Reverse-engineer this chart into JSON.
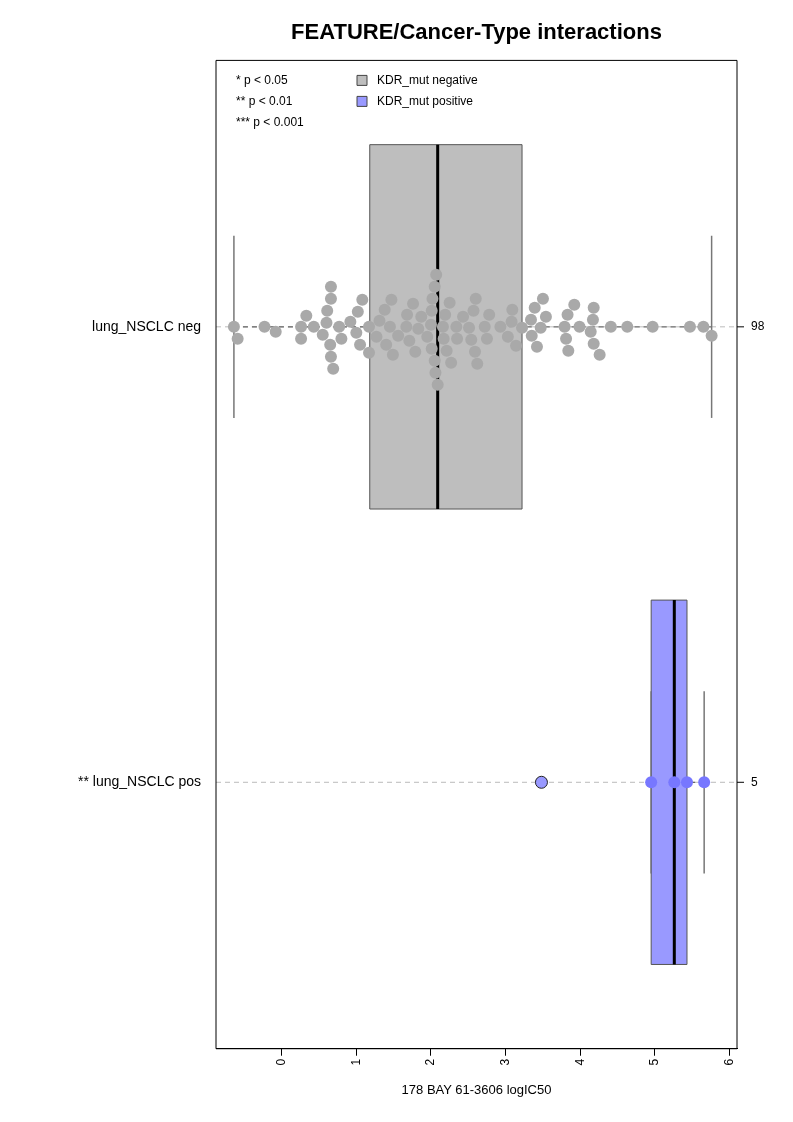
{
  "chart_data": {
    "type": "box",
    "title": "FEATURE/Cancer-Type interactions",
    "xlabel": "178 BAY 61-3606 logIC50",
    "orientation": "horizontal",
    "categories": [
      "lung_NSCLC neg",
      "** lung_NSCLC pos"
    ],
    "xlim": [
      -0.88,
      6.1
    ],
    "xticks": [
      0,
      1,
      2,
      3,
      4,
      5,
      6
    ],
    "grid": "y",
    "legend": "top left",
    "marker": "circle",
    "y2_categories": [
      "98",
      "5"
    ],
    "annotations": [
      "* p < 0.05",
      "** p < 0.01",
      "*** p < 0.001"
    ],
    "series": [
      {
        "name": "KDR_mut negative",
        "type": "box",
        "color": "#bebebe",
        "boxes": [
          {
            "low": -0.64,
            "q1": 1.18,
            "median": 2.09,
            "q3": 3.22,
            "high": 5.76
          },
          null
        ]
      },
      {
        "name": "KDR_mut positive",
        "type": "box",
        "color": "#9999ff",
        "boxes": [
          null,
          {
            "low": 4.95,
            "q1": 4.95,
            "median": 5.26,
            "q3": 5.43,
            "high": 5.66,
            "outliers": [
              3.48
            ]
          }
        ]
      },
      {
        "type": "scatter",
        "color": "#a9a9a9",
        "x": [
          "lung_NSCLC neg",
          "lung_NSCLC neg",
          "lung_NSCLC neg",
          "lung_NSCLC neg",
          "lung_NSCLC neg",
          "lung_NSCLC neg",
          "lung_NSCLC neg",
          "lung_NSCLC neg",
          "lung_NSCLC neg",
          "lung_NSCLC neg",
          "lung_NSCLC neg",
          "lung_NSCLC neg",
          "lung_NSCLC neg",
          "lung_NSCLC neg",
          "lung_NSCLC neg",
          "lung_NSCLC neg",
          "lung_NSCLC neg",
          "lung_NSCLC neg",
          "lung_NSCLC neg",
          "lung_NSCLC neg",
          "lung_NSCLC neg",
          "lung_NSCLC neg",
          "lung_NSCLC neg",
          "lung_NSCLC neg",
          "lung_NSCLC neg",
          "lung_NSCLC neg",
          "lung_NSCLC neg",
          "lung_NSCLC neg",
          "lung_NSCLC neg",
          "lung_NSCLC neg",
          "lung_NSCLC neg",
          "lung_NSCLC neg",
          "lung_NSCLC neg",
          "lung_NSCLC neg",
          "lung_NSCLC neg",
          "lung_NSCLC neg",
          "lung_NSCLC neg",
          "lung_NSCLC neg",
          "lung_NSCLC neg",
          "lung_NSCLC neg",
          "lung_NSCLC neg",
          "lung_NSCLC neg",
          "lung_NSCLC neg",
          "lung_NSCLC neg",
          "lung_NSCLC neg",
          "lung_NSCLC neg",
          "lung_NSCLC neg",
          "lung_NSCLC neg",
          "lung_NSCLC neg",
          "lung_NSCLC neg",
          "lung_NSCLC neg",
          "lung_NSCLC neg",
          "lung_NSCLC neg",
          "lung_NSCLC neg",
          "lung_NSCLC neg",
          "lung_NSCLC neg",
          "lung_NSCLC neg",
          "lung_NSCLC neg",
          "lung_NSCLC neg",
          "lung_NSCLC neg",
          "lung_NSCLC neg",
          "lung_NSCLC neg",
          "lung_NSCLC neg",
          "lung_NSCLC neg",
          "lung_NSCLC neg",
          "lung_NSCLC neg",
          "lung_NSCLC neg",
          "lung_NSCLC neg",
          "lung_NSCLC neg",
          "lung_NSCLC neg",
          "lung_NSCLC neg",
          "lung_NSCLC neg",
          "lung_NSCLC neg",
          "lung_NSCLC neg",
          "lung_NSCLC neg",
          "lung_NSCLC neg",
          "lung_NSCLC neg",
          "lung_NSCLC neg",
          "lung_NSCLC neg",
          "lung_NSCLC neg",
          "lung_NSCLC neg",
          "lung_NSCLC neg",
          "lung_NSCLC neg",
          "lung_NSCLC neg",
          "lung_NSCLC neg",
          "lung_NSCLC neg",
          "lung_NSCLC neg",
          "lung_NSCLC neg",
          "lung_NSCLC neg",
          "lung_NSCLC neg",
          "lung_NSCLC neg",
          "lung_NSCLC neg",
          "lung_NSCLC neg",
          "lung_NSCLC neg",
          "lung_NSCLC neg",
          "lung_NSCLC neg",
          "lung_NSCLC neg",
          "lung_NSCLC neg"
        ],
        "values": [
          -0.64,
          -0.59,
          -0.23,
          -0.08,
          0.26,
          0.26,
          0.33,
          0.43,
          0.55,
          0.6,
          0.61,
          0.65,
          0.66,
          0.66,
          0.66,
          0.69,
          0.77,
          0.8,
          0.92,
          1.0,
          1.02,
          1.05,
          1.08,
          1.17,
          1.17,
          1.27,
          1.31,
          1.38,
          1.4,
          1.45,
          1.47,
          1.49,
          1.56,
          1.67,
          1.68,
          1.71,
          1.76,
          1.79,
          1.83,
          1.87,
          1.95,
          2.0,
          2.01,
          2.01,
          2.02,
          2.05,
          2.05,
          2.06,
          2.07,
          2.09,
          2.16,
          2.17,
          2.19,
          2.21,
          2.25,
          2.27,
          2.34,
          2.35,
          2.43,
          2.51,
          2.54,
          2.57,
          2.59,
          2.6,
          2.62,
          2.72,
          2.75,
          2.78,
          2.93,
          3.03,
          3.08,
          3.09,
          3.14,
          3.22,
          3.34,
          3.35,
          3.39,
          3.42,
          3.47,
          3.5,
          3.54,
          3.79,
          3.81,
          3.83,
          3.84,
          3.92,
          3.99,
          4.14,
          4.17,
          4.18,
          4.18,
          4.26,
          4.41,
          4.63,
          4.97,
          5.47,
          5.65,
          5.76
        ]
      },
      {
        "type": "scatter",
        "color": "#7777ff",
        "x": [
          "** lung_NSCLC pos",
          "** lung_NSCLC pos",
          "** lung_NSCLC pos",
          "** lung_NSCLC pos"
        ],
        "values": [
          4.95,
          5.26,
          5.43,
          5.66
        ]
      }
    ]
  }
}
